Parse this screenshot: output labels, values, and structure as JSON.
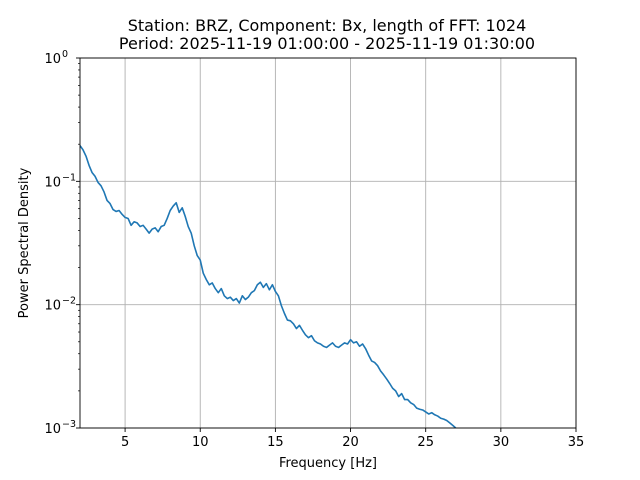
{
  "chart_data": {
    "type": "line",
    "title_lines": [
      "Station: BRZ, Component: Bx, length of FFT: 1024",
      "Period: 2025-11-19 01:00:00 - 2025-11-19 01:30:00"
    ],
    "xlabel": "Frequency [Hz]",
    "ylabel": "Power Spectral Density",
    "xlim": [
      2,
      35
    ],
    "ylim": [
      0.001,
      1
    ],
    "yscale": "log",
    "grid": true,
    "x_ticks": [
      5,
      10,
      15,
      20,
      25,
      30,
      35
    ],
    "y_ticks": [
      {
        "value": 0.001,
        "base": "10",
        "exp": "−3"
      },
      {
        "value": 0.01,
        "base": "10",
        "exp": "−2"
      },
      {
        "value": 0.1,
        "base": "10",
        "exp": "−1"
      },
      {
        "value": 1,
        "base": "10",
        "exp": "0"
      }
    ],
    "series": [
      {
        "color": "#1f77b4",
        "x": [
          2.0,
          2.2,
          2.4,
          2.6,
          2.8,
          3.0,
          3.2,
          3.4,
          3.6,
          3.8,
          4.0,
          4.2,
          4.4,
          4.6,
          4.8,
          5.0,
          5.2,
          5.4,
          5.6,
          5.8,
          6.0,
          6.2,
          6.4,
          6.6,
          6.8,
          7.0,
          7.2,
          7.4,
          7.6,
          7.8,
          8.0,
          8.2,
          8.4,
          8.6,
          8.8,
          9.0,
          9.2,
          9.4,
          9.6,
          9.8,
          10.0,
          10.2,
          10.4,
          10.6,
          10.8,
          11.0,
          11.2,
          11.4,
          11.6,
          11.8,
          12.0,
          12.2,
          12.4,
          12.6,
          12.8,
          13.0,
          13.2,
          13.4,
          13.6,
          13.8,
          14.0,
          14.2,
          14.4,
          14.6,
          14.8,
          15.0,
          15.2,
          15.4,
          15.6,
          15.8,
          16.0,
          16.2,
          16.4,
          16.6,
          16.8,
          17.0,
          17.2,
          17.4,
          17.6,
          17.8,
          18.0,
          18.2,
          18.4,
          18.6,
          18.8,
          19.0,
          19.2,
          19.4,
          19.6,
          19.8,
          20.0,
          20.2,
          20.4,
          20.6,
          20.8,
          21.0,
          21.2,
          21.4,
          21.6,
          21.8,
          22.0,
          22.2,
          22.4,
          22.6,
          22.8,
          23.0,
          23.2,
          23.4,
          23.6,
          23.8,
          24.0,
          24.2,
          24.4,
          24.6,
          24.8,
          25.0,
          25.2,
          25.4,
          25.6,
          25.8,
          26.0,
          26.2,
          26.4,
          26.6,
          26.8,
          27.0
        ],
        "y": [
          0.195,
          0.18,
          0.16,
          0.135,
          0.118,
          0.11,
          0.098,
          0.092,
          0.082,
          0.07,
          0.066,
          0.059,
          0.057,
          0.058,
          0.054,
          0.051,
          0.05,
          0.044,
          0.047,
          0.046,
          0.043,
          0.044,
          0.041,
          0.038,
          0.041,
          0.042,
          0.039,
          0.043,
          0.044,
          0.05,
          0.058,
          0.063,
          0.067,
          0.056,
          0.061,
          0.052,
          0.043,
          0.038,
          0.03,
          0.025,
          0.023,
          0.018,
          0.016,
          0.0145,
          0.015,
          0.0135,
          0.0125,
          0.0135,
          0.0118,
          0.0112,
          0.0115,
          0.0108,
          0.0112,
          0.0103,
          0.0118,
          0.011,
          0.0115,
          0.0125,
          0.013,
          0.0145,
          0.0152,
          0.0138,
          0.0148,
          0.0132,
          0.0145,
          0.0128,
          0.0118,
          0.0098,
          0.0085,
          0.0075,
          0.0074,
          0.007,
          0.0064,
          0.0068,
          0.0062,
          0.0057,
          0.0054,
          0.0056,
          0.0051,
          0.0049,
          0.0048,
          0.0046,
          0.0045,
          0.0047,
          0.0049,
          0.0046,
          0.0045,
          0.0047,
          0.0049,
          0.0048,
          0.0052,
          0.0049,
          0.005,
          0.0046,
          0.0048,
          0.0044,
          0.0039,
          0.0035,
          0.0034,
          0.0032,
          0.0029,
          0.0027,
          0.0025,
          0.0023,
          0.0021,
          0.002,
          0.0018,
          0.0019,
          0.0017,
          0.0017,
          0.0016,
          0.00155,
          0.00145,
          0.00142,
          0.0014,
          0.00135,
          0.0013,
          0.00133,
          0.00128,
          0.00125,
          0.0012,
          0.00118,
          0.00115,
          0.0011,
          0.00105,
          0.001
        ]
      }
    ]
  }
}
